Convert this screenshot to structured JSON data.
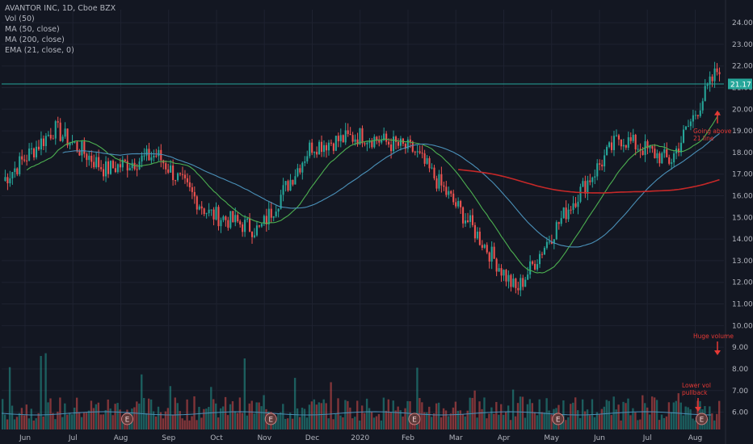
{
  "legend": {
    "symbol": "AVANTOR INC, 1D, Cboe BZX",
    "vol": "Vol (50)",
    "ma50": "MA (50, close)",
    "ma200": "MA (200, close)",
    "ema21": "EMA (21, close, 0)"
  },
  "chart_data": {
    "type": "candlestick",
    "symbol": "AVANTOR INC",
    "interval": "1D",
    "exchange": "Cboe BZX",
    "ylim": [
      5.2,
      24.6
    ],
    "y_ticks": [
      "24.00",
      "23.00",
      "22.00",
      "21.00",
      "20.00",
      "19.00",
      "18.00",
      "17.00",
      "16.00",
      "15.00",
      "14.00",
      "13.00",
      "12.00",
      "11.00",
      "10.00",
      "9.00",
      "8.00",
      "7.00",
      "6.00"
    ],
    "x_ticks": [
      "Jun",
      "Jul",
      "Aug",
      "Sep",
      "Oct",
      "Nov",
      "Dec",
      "2020",
      "Feb",
      "Mar",
      "Apr",
      "May",
      "Jun",
      "Jul",
      "Aug"
    ],
    "price_trend": [
      [
        "Jun",
        16.7
      ],
      [
        "Jul",
        19.1
      ],
      [
        "Aug",
        17.2
      ],
      [
        "Sep",
        17.9
      ],
      [
        "Oct",
        15.2
      ],
      [
        "Nov",
        14.4
      ],
      [
        "Dec",
        18.3
      ],
      [
        "2020",
        18.8
      ],
      [
        "Feb",
        18.1
      ],
      [
        "Mar",
        15.0
      ],
      [
        "Apr",
        11.6
      ],
      [
        "May",
        15.4
      ],
      [
        "Jun",
        18.7
      ],
      [
        "Jul",
        17.6
      ],
      [
        "Aug",
        22.2
      ]
    ],
    "horizontal_line": 21.17,
    "last_price_label": "21.17",
    "earnings_markers": [
      "Aug",
      "Nov",
      "Feb",
      "May",
      "Aug"
    ],
    "earnings_label": "E",
    "volume_axis_max": 10,
    "annotations": [
      {
        "text": [
          "Going above",
          "21 line"
        ],
        "arrow": "up"
      },
      {
        "text": [
          "Huge volume"
        ],
        "arrow": "down"
      },
      {
        "text": [
          "Lower vol",
          "pullback"
        ],
        "arrow": "down"
      }
    ],
    "colors": {
      "background": "#131722",
      "up": "#26a69a",
      "down": "#ef5350",
      "ma50": "#4caf50",
      "ma200": "#c62828",
      "ema21": "#4a90b8",
      "annotation": "#e53935",
      "hline": "#26a69a"
    }
  }
}
